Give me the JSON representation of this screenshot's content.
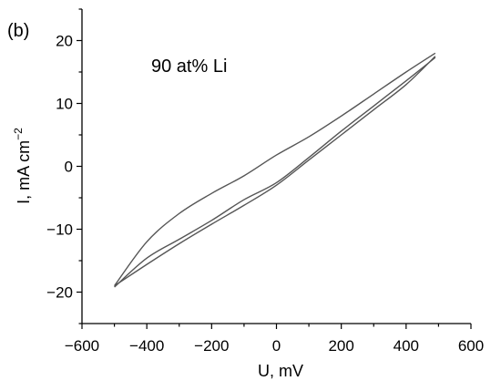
{
  "chart_data": {
    "type": "line",
    "panel_label": "(b)",
    "annotation": "90 at% Li",
    "xlabel": "U, mV",
    "ylabel": "I, mA cm",
    "ylabel_sup": "−2",
    "xlim": [
      -600,
      600
    ],
    "ylim": [
      -25,
      25
    ],
    "x_ticks": [
      -600,
      -400,
      -200,
      0,
      200,
      400,
      600
    ],
    "x_tick_labels": [
      "−600",
      "−400",
      "−200",
      "0",
      "200",
      "400",
      "600"
    ],
    "y_ticks": [
      -20,
      -10,
      0,
      10,
      20
    ],
    "y_tick_labels": [
      "−20",
      "−10",
      "0",
      "10",
      "20"
    ],
    "grid": false,
    "line_color": "#555555",
    "series": [
      {
        "x": [
          -500,
          -400,
          -300,
          -200,
          -100,
          0,
          100,
          200,
          300,
          400,
          490
        ],
        "y": [
          -19.0,
          -12.0,
          -7.5,
          -4.3,
          -1.5,
          1.8,
          4.7,
          8.0,
          11.5,
          15.0,
          18.0
        ]
      },
      {
        "x": [
          490,
          400,
          300,
          200,
          100,
          0,
          -100,
          -200,
          -300,
          -400,
          -500
        ],
        "y": [
          17.5,
          13.0,
          9.0,
          5.0,
          1.0,
          -3.0,
          -6.2,
          -9.2,
          -12.3,
          -15.6,
          -19.0
        ]
      },
      {
        "x": [
          -500,
          -400,
          -300,
          -200,
          -100,
          0,
          100,
          200,
          300,
          400,
          490
        ],
        "y": [
          -19.2,
          -14.6,
          -11.6,
          -8.6,
          -5.3,
          -2.6,
          1.4,
          5.6,
          9.6,
          13.6,
          17.3
        ]
      }
    ]
  }
}
